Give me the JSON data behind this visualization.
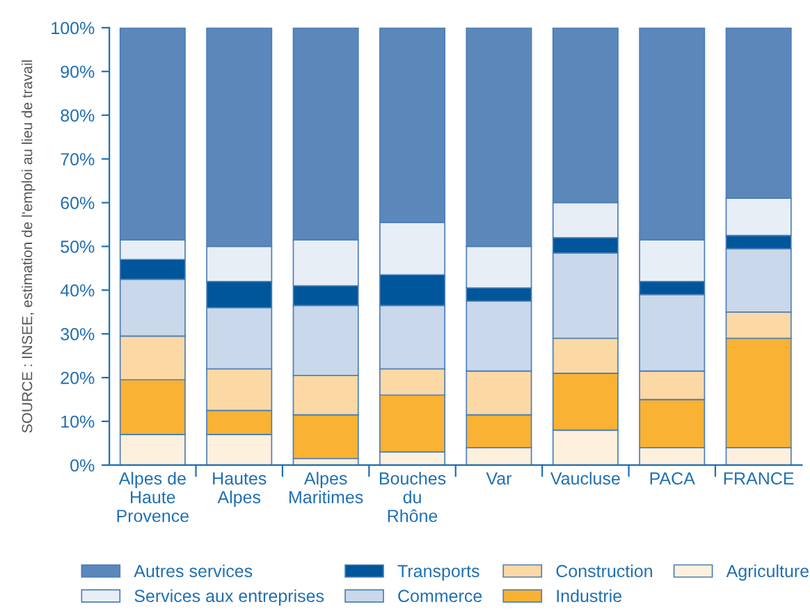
{
  "chart_data": {
    "type": "bar",
    "stacked": true,
    "categories": [
      "Alpes de\nHaute\nProvence",
      "Hautes\nAlpes",
      "Alpes\nMaritimes",
      "Bouches\ndu\nRhône",
      "Var",
      "Vaucluse",
      "PACA",
      "FRANCE"
    ],
    "series": [
      {
        "name": "Agriculture",
        "color": "#fdf0dc",
        "values": [
          7,
          7,
          1.5,
          3,
          4,
          8,
          4,
          4
        ]
      },
      {
        "name": "Industrie",
        "color": "#f9b233",
        "values": [
          12.5,
          5.5,
          10,
          13,
          7.5,
          13,
          11,
          25
        ]
      },
      {
        "name": "Construction",
        "color": "#fcd9a4",
        "values": [
          10,
          9.5,
          9,
          6,
          10,
          8,
          6.5,
          6
        ]
      },
      {
        "name": "Commerce",
        "color": "#c9d8ea",
        "values": [
          13,
          14,
          16,
          14.5,
          16,
          19.5,
          17.5,
          14.5
        ]
      },
      {
        "name": "Transports",
        "color": "#00569a",
        "values": [
          4.5,
          6,
          4.5,
          7,
          3,
          3.5,
          3,
          3
        ]
      },
      {
        "name": "Services aux entreprises",
        "color": "#e8eef6",
        "values": [
          4.5,
          8,
          10.5,
          12,
          9.5,
          8,
          9.5,
          8.5
        ]
      },
      {
        "name": "Autres services",
        "color": "#5b87bb",
        "values": [
          48.5,
          50,
          48.5,
          44.5,
          50,
          40,
          48.5,
          39
        ]
      }
    ],
    "ylim": [
      0,
      100
    ],
    "yticks": [
      {
        "value": 0,
        "label": "0%"
      },
      {
        "value": 10,
        "label": "10%"
      },
      {
        "value": 20,
        "label": "20%"
      },
      {
        "value": 30,
        "label": "30%"
      },
      {
        "value": 40,
        "label": "40%"
      },
      {
        "value": 50,
        "label": "50%"
      },
      {
        "value": 60,
        "label": "60%"
      },
      {
        "value": 70,
        "label": "70%"
      },
      {
        "value": 80,
        "label": "80%"
      },
      {
        "value": 90,
        "label": "90%"
      },
      {
        "value": 100,
        "label": "100%"
      }
    ],
    "grid": false,
    "legend": "bottom",
    "annotations": [
      "SOURCE : INSEE, estimation de l'emploi au lieu de travail"
    ]
  }
}
